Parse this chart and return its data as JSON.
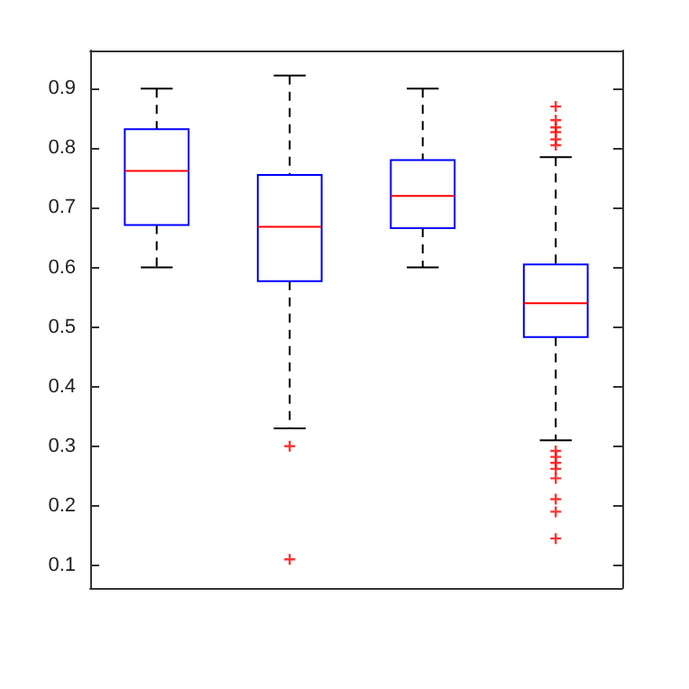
{
  "chart_data": {
    "type": "box",
    "categories": [
      null,
      null,
      null,
      null
    ],
    "series": [
      {
        "color": "#0000ff",
        "boxes": [
          {
            "low": 0.6,
            "q1": 0.671,
            "median": 0.762,
            "q3": 0.832,
            "high": 0.9
          },
          {
            "low": 0.33,
            "q1": 0.577,
            "median": 0.668,
            "q3": 0.755,
            "high": 0.922,
            "outliers": [
              0.3,
              0.11
            ]
          },
          {
            "low": 0.6,
            "q1": 0.666,
            "median": 0.72,
            "q3": 0.78,
            "high": 0.9
          },
          {
            "low": 0.31,
            "q1": 0.483,
            "median": 0.54,
            "q3": 0.605,
            "high": 0.785,
            "outliers": [
              0.87,
              0.847,
              0.835,
              0.827,
              0.815,
              0.805,
              0.292,
              0.282,
              0.272,
              0.262,
              0.246,
              0.211,
              0.19,
              0.145
            ]
          }
        ]
      }
    ],
    "ylim": [
      0.062,
      0.964
    ],
    "yticks": [
      0.1,
      0.2,
      0.3,
      0.4,
      0.5,
      0.6,
      0.7,
      0.8,
      0.9
    ],
    "tick_labels": "y",
    "grid": false,
    "marker": "cross"
  }
}
